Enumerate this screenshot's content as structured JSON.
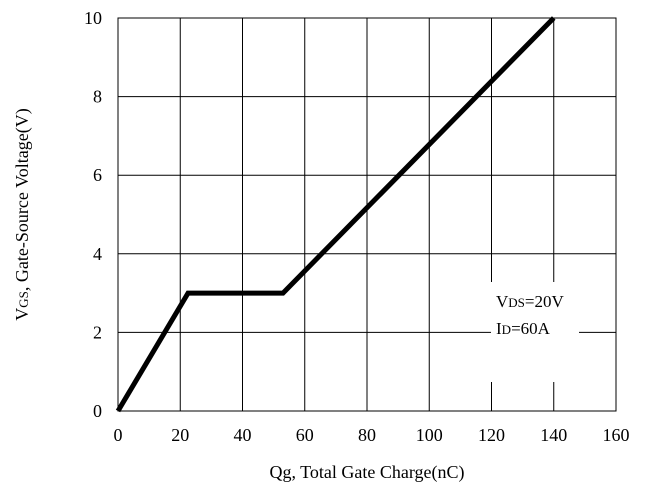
{
  "chart_data": {
    "type": "line",
    "title": "",
    "xlabel": "Qg, Total Gate Charge(nC)",
    "ylabel": {
      "main": "V",
      "sub": "GS",
      "rest": ", Gate-Source Voltage(V)"
    },
    "xlim": [
      0,
      160
    ],
    "ylim": [
      0,
      10
    ],
    "xticks": [
      0,
      20,
      40,
      60,
      80,
      100,
      120,
      140,
      160
    ],
    "yticks": [
      0,
      2,
      4,
      6,
      8,
      10
    ],
    "grid": true,
    "series": [
      {
        "color": "#000000",
        "points": [
          [
            0,
            0
          ],
          [
            22.5,
            3
          ],
          [
            53,
            3
          ],
          [
            140,
            10
          ]
        ]
      }
    ],
    "annotations": [
      {
        "main": "V",
        "sub": "DS",
        "rest": "=20V"
      },
      {
        "main": "I",
        "sub": "D",
        "rest": "=60A"
      }
    ]
  }
}
